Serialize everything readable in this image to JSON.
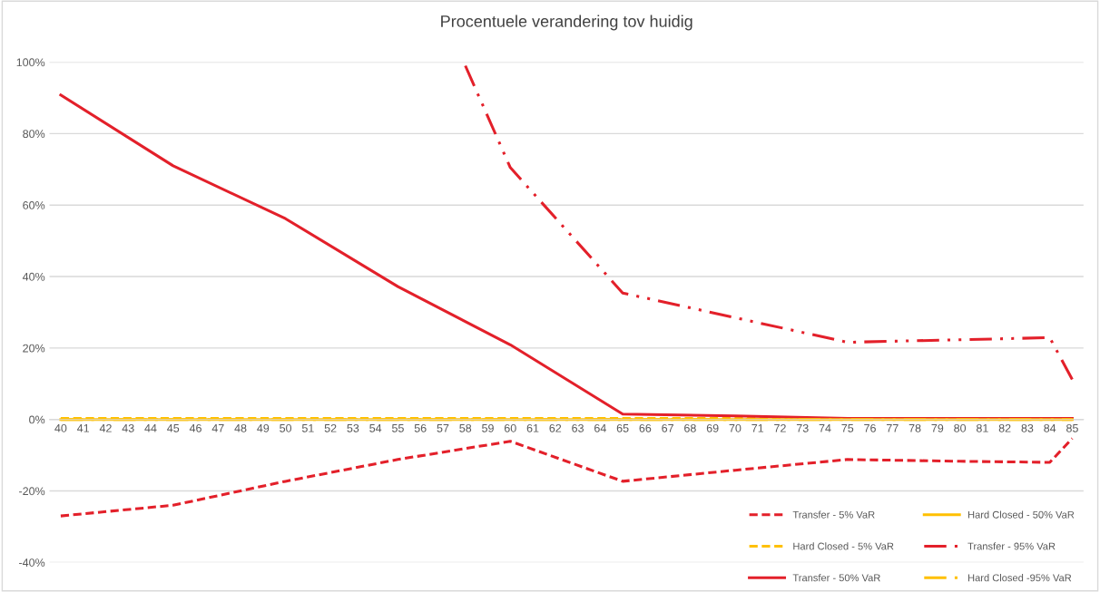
{
  "chart_data": {
    "type": "line",
    "title": "Procentuele verandering tov huidig",
    "xlim": [
      39.5,
      85.5
    ],
    "xticks": [
      40,
      41,
      42,
      43,
      44,
      45,
      46,
      47,
      48,
      49,
      50,
      51,
      52,
      53,
      54,
      55,
      56,
      57,
      58,
      59,
      60,
      61,
      62,
      63,
      64,
      65,
      66,
      67,
      68,
      69,
      70,
      71,
      72,
      73,
      74,
      75,
      76,
      77,
      78,
      79,
      80,
      81,
      82,
      83,
      84,
      85
    ],
    "ylim": [
      -40,
      100
    ],
    "yticks": [
      {
        "value": -40,
        "label": "-40%"
      },
      {
        "value": -20,
        "label": "-20%"
      },
      {
        "value": 0,
        "label": "0%"
      },
      {
        "value": 20,
        "label": "20%"
      },
      {
        "value": 40,
        "label": "40%"
      },
      {
        "value": 60,
        "label": "60%"
      },
      {
        "value": 80,
        "label": "80%"
      },
      {
        "value": 100,
        "label": "100%"
      }
    ],
    "grid": "y",
    "legend": "bottom right",
    "marker": "none",
    "series": [
      {
        "name": "Transfer - 5% VaR",
        "color": "#e3202a",
        "line_style": "dashed",
        "x": [
          40,
          45,
          50,
          55,
          60,
          65,
          70,
          75,
          80,
          84,
          85
        ],
        "values": [
          -27,
          -24,
          -17.3,
          -11.2,
          -6.1,
          -17.3,
          -14.2,
          -11.2,
          -11.7,
          -12,
          -5.3
        ]
      },
      {
        "name": "Hard Closed - 5% VaR",
        "color": "#ffc000",
        "line_style": "dashed",
        "x": [
          40,
          85
        ],
        "values": [
          0.3,
          0.3
        ]
      },
      {
        "name": "Transfer - 50% VaR",
        "color": "#e3202a",
        "line_style": "solid",
        "x": [
          40,
          45,
          50,
          55,
          60,
          65,
          70,
          75,
          80,
          85
        ],
        "values": [
          90.8,
          71,
          56.2,
          37.2,
          20.9,
          1.5,
          1,
          0.3,
          0.3,
          0.3
        ]
      },
      {
        "name": "Hard Closed - 50% VaR",
        "color": "#ffc000",
        "line_style": "solid",
        "x": [
          40,
          85
        ],
        "values": [
          0,
          0
        ]
      },
      {
        "name": "Transfer - 95% VaR",
        "color": "#e3202a",
        "line_style": "dashdot",
        "x": [
          58,
          60,
          65,
          75,
          84,
          85
        ],
        "values": [
          99,
          70.5,
          35.4,
          21.6,
          22.9,
          11.2
        ]
      },
      {
        "name": "Hard Closed -95% VaR",
        "color": "#ffc000",
        "line_style": "dashdot",
        "x": [
          40,
          85
        ],
        "values": [
          0,
          0
        ]
      }
    ]
  }
}
